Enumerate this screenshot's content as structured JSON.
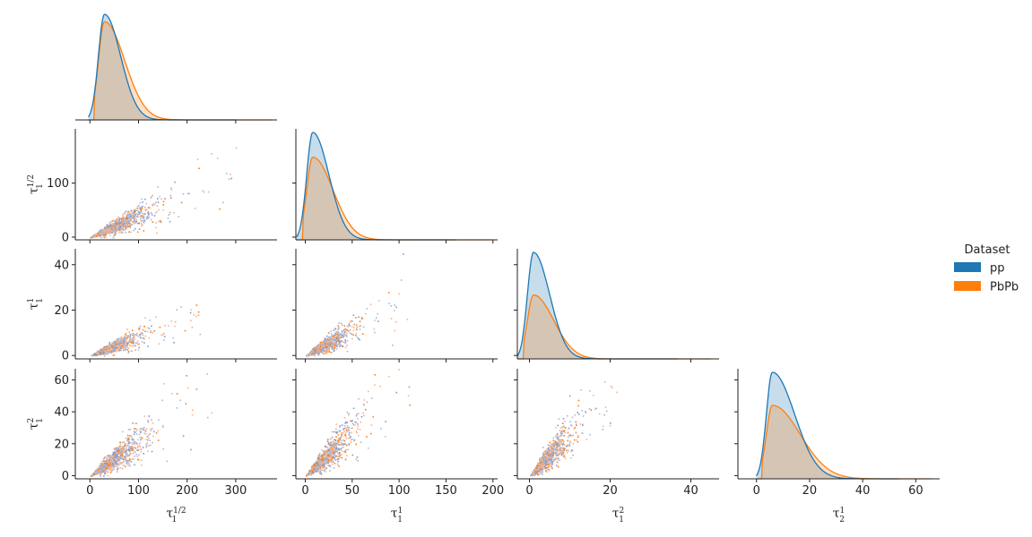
{
  "chart_data": {
    "type": "pairplot",
    "legend": {
      "title": "Dataset",
      "placement": "right",
      "entries": [
        {
          "name": "pp",
          "color": "#1f77b4"
        },
        {
          "name": "PbPb",
          "color": "#ff7f0e"
        }
      ]
    },
    "variables": [
      {
        "sym": "τ",
        "sub": "1",
        "sup": "1/2",
        "ticks": [
          0,
          100,
          200,
          300
        ],
        "range": [
          -30,
          385
        ]
      },
      {
        "sym": "τ",
        "sub": "1",
        "sup": "1",
        "ticks": [
          0,
          50,
          100,
          150,
          200
        ],
        "range": [
          -10,
          205
        ]
      },
      {
        "sym": "τ",
        "sub": "1",
        "sup": "2",
        "ticks": [
          0,
          20,
          40
        ],
        "range": [
          -3,
          47
        ]
      },
      {
        "sym": "τ",
        "sub": "2",
        "sup": "1",
        "ticks": [
          0,
          20,
          40,
          60
        ],
        "range": [
          -7,
          69
        ]
      }
    ],
    "row_ticks": [
      null,
      {
        "ticks": [
          0,
          100
        ],
        "range": [
          -5,
          200
        ]
      },
      {
        "ticks": [
          0,
          20,
          40
        ],
        "range": [
          -1.5,
          47
        ]
      },
      {
        "ticks": [
          0,
          20,
          40,
          60
        ],
        "range": [
          -2,
          67
        ]
      }
    ],
    "scatter_slopes": [
      {
        "row": 1,
        "col": 0,
        "slope": 0.4,
        "xmax": 300
      },
      {
        "row": 2,
        "col": 0,
        "slope": 0.085,
        "xmax": 230
      },
      {
        "row": 2,
        "col": 1,
        "slope": 0.23,
        "xmax": 110
      },
      {
        "row": 3,
        "col": 0,
        "slope": 0.22,
        "xmax": 260
      },
      {
        "row": 3,
        "col": 1,
        "slope": 0.55,
        "xmax": 120
      },
      {
        "row": 3,
        "col": 2,
        "slope": 2.6,
        "xmax": 22
      }
    ],
    "kde": [
      {
        "col": 0,
        "peak": 30,
        "pp_max": 1.0,
        "pbpb_max": 0.93,
        "tail_end": 375
      },
      {
        "col": 1,
        "peak": 8,
        "pp_max": 1.0,
        "pbpb_max": 0.77,
        "tail_end": 198
      },
      {
        "col": 2,
        "peak": 1,
        "pp_max": 1.0,
        "pbpb_max": 0.6,
        "tail_end": 45
      },
      {
        "col": 3,
        "peak": 6,
        "pp_max": 1.0,
        "pbpb_max": 0.69,
        "tail_end": 66
      }
    ]
  }
}
